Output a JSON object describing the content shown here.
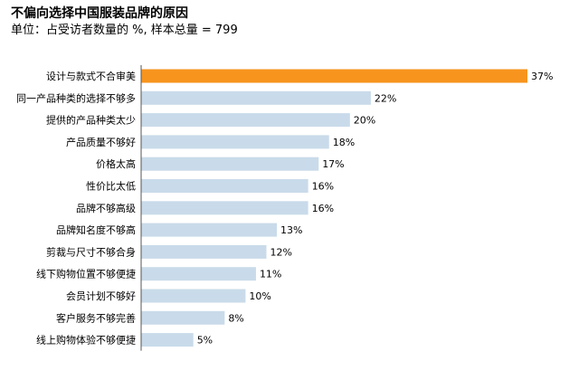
{
  "chart_data": {
    "type": "bar",
    "orientation": "horizontal",
    "title": "不偏向选择中国服装品牌的原因",
    "subtitle": "单位：占受访者数量的 %, 样本总量 = 799",
    "categories": [
      "设计与款式不合审美",
      "同一产品种类的选择不够多",
      "提供的产品种类太少",
      "产品质量不够好",
      "价格太高",
      "性价比太低",
      "品牌不够高级",
      "品牌知名度不够高",
      "剪裁与尺寸不够合身",
      "线下购物位置不够便捷",
      "会员计划不够好",
      "客户服务不够完善",
      "线上购物体验不够便捷"
    ],
    "values": [
      37,
      22,
      20,
      18,
      17,
      16,
      16,
      13,
      12,
      11,
      10,
      8,
      5
    ],
    "value_labels": [
      "37%",
      "22%",
      "20%",
      "18%",
      "17%",
      "16%",
      "16%",
      "13%",
      "12%",
      "11%",
      "10%",
      "8%",
      "5%"
    ],
    "highlight_index": 0,
    "xlim": [
      0,
      37
    ],
    "grid": false,
    "colors": {
      "highlight": "#F7941D",
      "bar": "#C9DBEA",
      "axis": "#555555",
      "text": "#000000"
    }
  }
}
